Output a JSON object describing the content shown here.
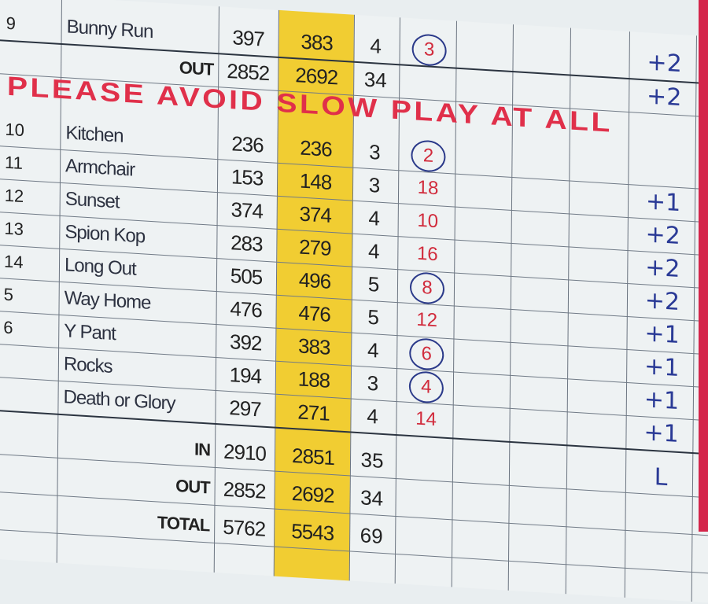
{
  "banner": "PLEASE AVOID SLOW PLAY AT ALL",
  "holes": [
    {
      "hole": "9",
      "name": "Bunny Run",
      "white": "397",
      "yellow": "383",
      "par": "4",
      "si": "3",
      "circled": true,
      "score": "+2"
    },
    {
      "hole": "10",
      "name": "Kitchen",
      "white": "236",
      "yellow": "236",
      "par": "3",
      "si": "2",
      "circled": true,
      "score": ""
    },
    {
      "hole": "11",
      "name": "Armchair",
      "white": "153",
      "yellow": "148",
      "par": "3",
      "si": "18",
      "circled": false,
      "score": "+1"
    },
    {
      "hole": "12",
      "name": "Sunset",
      "white": "374",
      "yellow": "374",
      "par": "4",
      "si": "10",
      "circled": false,
      "score": "+2"
    },
    {
      "hole": "13",
      "name": "Spion Kop",
      "white": "283",
      "yellow": "279",
      "par": "4",
      "si": "16",
      "circled": false,
      "score": "+2"
    },
    {
      "hole": "14",
      "name": "Long Out",
      "white": "505",
      "yellow": "496",
      "par": "5",
      "si": "8",
      "circled": true,
      "score": "+2"
    },
    {
      "hole": "5",
      "name": "Way Home",
      "white": "476",
      "yellow": "476",
      "par": "5",
      "si": "12",
      "circled": false,
      "score": "+1"
    },
    {
      "hole": "6",
      "name": "Y Pant",
      "white": "392",
      "yellow": "383",
      "par": "4",
      "si": "6",
      "circled": true,
      "score": "+1"
    },
    {
      "hole": "",
      "name": "Rocks",
      "white": "194",
      "yellow": "188",
      "par": "3",
      "si": "4",
      "circled": true,
      "score": "+1"
    },
    {
      "hole": "",
      "name": "Death or Glory",
      "white": "297",
      "yellow": "271",
      "par": "4",
      "si": "14",
      "circled": false,
      "score": "+1"
    }
  ],
  "totals_top": {
    "label": "OUT",
    "white": "2852",
    "yellow": "2692",
    "par": "34",
    "score": "+2"
  },
  "totals": [
    {
      "label": "IN",
      "white": "2910",
      "yellow": "2851",
      "par": "35",
      "score": "L"
    },
    {
      "label": "OUT",
      "white": "2852",
      "yellow": "2692",
      "par": "34",
      "score": ""
    },
    {
      "label": "TOTAL",
      "white": "5762",
      "yellow": "5543",
      "par": "69",
      "score": ""
    }
  ],
  "colors": {
    "yellow_tee": "#f1cd32",
    "banner_red": "#e0304a",
    "pen_blue": "#2a3a96"
  }
}
